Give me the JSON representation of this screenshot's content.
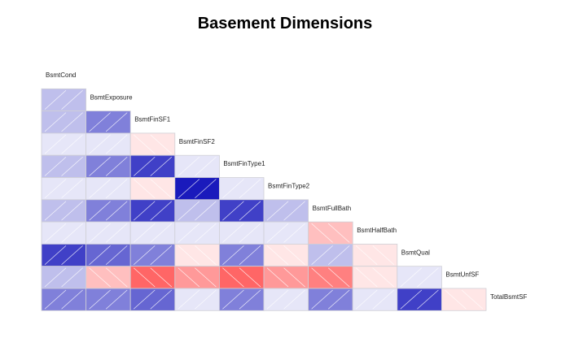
{
  "title": "Basement Dimensions",
  "chart_data": {
    "type": "heatmap",
    "title": "Basement Dimensions",
    "variables": [
      "BsmtCond",
      "BsmtExposure",
      "BsmtFinSF1",
      "BsmtFinSF2",
      "BsmtFinType1",
      "BsmtFinType2",
      "BsmtFullBath",
      "BsmtHalfBath",
      "BsmtQual",
      "BsmtUnfSF",
      "TotalBsmtSF"
    ],
    "layout": "lower-triangle, labels on diagonal, shaded squares",
    "matrix": [
      [
        0.25
      ],
      [
        0.25,
        0.5
      ],
      [
        0.1,
        0.1,
        -0.1
      ],
      [
        0.25,
        0.5,
        0.75,
        0.1
      ],
      [
        0.1,
        0.1,
        -0.1,
        0.9,
        0.1
      ],
      [
        0.25,
        0.5,
        0.75,
        0.25,
        0.75,
        0.25
      ],
      [
        0.1,
        0.1,
        0.1,
        0.1,
        0.1,
        0.1,
        -0.25
      ],
      [
        0.75,
        0.6,
        0.5,
        -0.1,
        0.5,
        -0.1,
        0.25,
        -0.1
      ],
      [
        0.25,
        -0.25,
        -0.6,
        -0.4,
        -0.6,
        -0.4,
        -0.5,
        -0.1,
        0.1
      ],
      [
        0.5,
        0.5,
        0.6,
        0.1,
        0.5,
        0.1,
        0.5,
        0.1,
        0.75,
        -0.1
      ]
    ],
    "color_scale": {
      "negative": "#ff0000",
      "zero": "#ffffff",
      "positive": "#0000b4"
    }
  }
}
